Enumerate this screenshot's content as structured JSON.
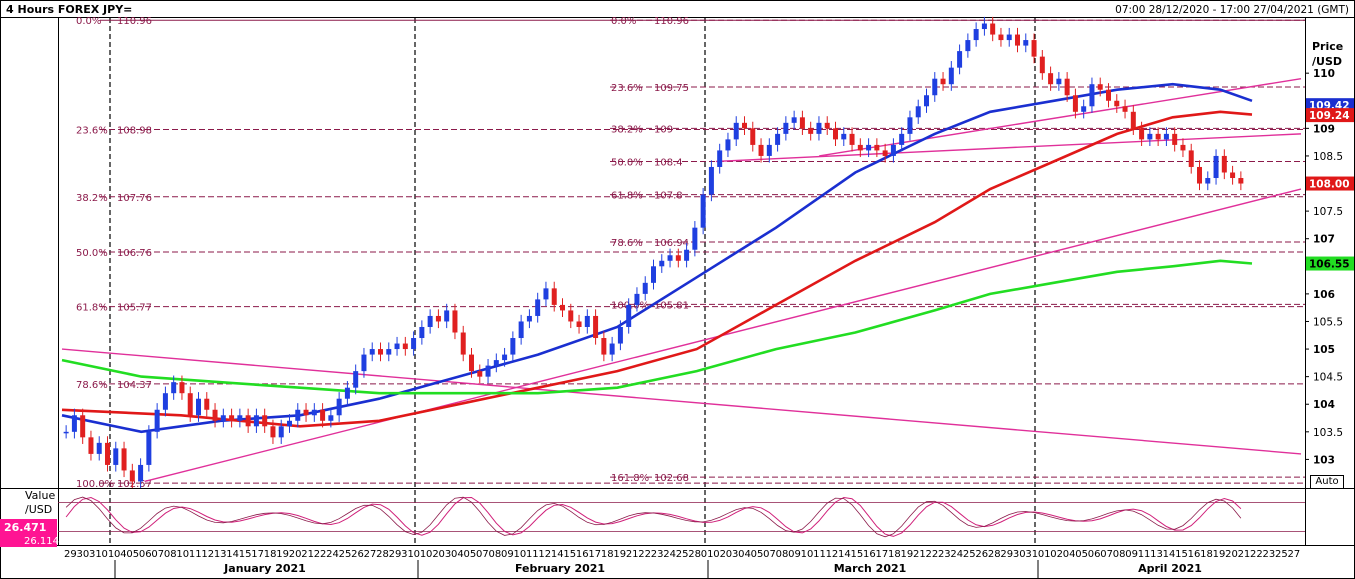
{
  "header": {
    "title": "4 Hours FOREX JPY=",
    "range": "07:00 28/12/2020 - 17:00 27/04/2021 (GMT)"
  },
  "price_axis": {
    "title_line1": "Price",
    "title_line2": "/USD"
  },
  "osc_axis": {
    "title_line1": "Value",
    "title_line2": "/USD",
    "value1": "26.471",
    "value2": "26.114"
  },
  "auto_label": "Auto",
  "colors": {
    "bg": "#ffffff",
    "candle_up": "#1f3fe0",
    "candle_down": "#e02020",
    "ma_blue": "#1a2fd0",
    "ma_red": "#e01818",
    "ma_green": "#22dd22",
    "trend": "#e0309a",
    "fib": "#8b1a4a",
    "osc": "#d0207a"
  },
  "chart_data": {
    "type": "candlestick",
    "title": "4 Hours FOREX JPY=",
    "price_axis_title": "Price /USD",
    "ylim": [
      102.5,
      111.0
    ],
    "y_ticks": [
      103,
      103.5,
      104,
      104.5,
      105,
      105.5,
      106,
      106.5,
      107,
      107.5,
      108,
      108.5,
      109,
      109.5,
      110
    ],
    "y_tick_labels": [
      "103",
      "103.5",
      "104",
      "104.5",
      "105",
      "105.5",
      "106",
      "106.5",
      "107",
      "107.5",
      "108",
      "108.5",
      "109",
      "",
      "110"
    ],
    "x_day_labels": [
      "29",
      "30",
      "31",
      "01",
      "04",
      "05",
      "06",
      "07",
      "08",
      "11",
      "12",
      "13",
      "14",
      "15",
      "18",
      "19",
      "20",
      "21",
      "22",
      "25",
      "26",
      "27",
      "28",
      "29",
      "01",
      "02",
      "03",
      "04",
      "05",
      "08",
      "09",
      "10",
      "11",
      "12",
      "15",
      "16",
      "17",
      "18",
      "19",
      "22",
      "23",
      "24",
      "25",
      "26",
      "01",
      "02",
      "03",
      "04",
      "05",
      "08",
      "09",
      "10",
      "11",
      "12",
      "15",
      "16",
      "17",
      "18",
      "19",
      "22",
      "23",
      "24",
      "25",
      "26",
      "29",
      "30",
      "31",
      "01",
      "02",
      "05",
      "06",
      "07",
      "08",
      "09",
      "12",
      "13",
      "14",
      "15",
      "16",
      "19",
      "20",
      "21",
      "22",
      "23",
      "26",
      "27"
    ],
    "x_day_labels_display": [
      "29",
      "30",
      "31",
      "01",
      "04",
      "05",
      "06",
      "07",
      "08",
      "10",
      "11",
      "12",
      "13",
      "14",
      "15",
      "17",
      "18",
      "19",
      "20",
      "21",
      "22",
      "24",
      "25",
      "26",
      "27",
      "28",
      "29",
      "31",
      "01",
      "02",
      "03",
      "04",
      "05",
      "07",
      "08",
      "09",
      "10",
      "11",
      "12",
      "14",
      "15",
      "16",
      "17",
      "18",
      "19",
      "21",
      "22",
      "23",
      "24",
      "25",
      "28",
      "01",
      "02",
      "03",
      "04",
      "05",
      "07",
      "08",
      "09",
      "10",
      "11",
      "12",
      "14",
      "15",
      "16",
      "17",
      "18",
      "19",
      "21",
      "22",
      "23",
      "24",
      "25",
      "26",
      "28",
      "29",
      "30",
      "31",
      "01",
      "02",
      "04",
      "05",
      "06",
      "07",
      "08",
      "09",
      "11",
      "13",
      "14",
      "15",
      "16",
      "18",
      "19",
      "20",
      "21",
      "22",
      "23",
      "25",
      "27"
    ],
    "month_labels": [
      "January 2021",
      "February 2021",
      "March 2021",
      "April 2021"
    ],
    "last_price": 108.0,
    "price_tags": [
      {
        "value": 109.42,
        "label": "109.42",
        "color": "#1a2fd0"
      },
      {
        "value": 109.24,
        "label": "109.24",
        "color": "#e01818"
      },
      {
        "value": 108.0,
        "label": "108.00",
        "color": "#e01818"
      },
      {
        "value": 106.55,
        "label": "106.55",
        "color": "#22dd22"
      }
    ],
    "fibonacci_left": {
      "levels": [
        {
          "pct": "0.0%",
          "price": "110.96",
          "value": 110.96
        },
        {
          "pct": "23.6%",
          "price": "108.98",
          "value": 108.98
        },
        {
          "pct": "38.2%",
          "price": "107.76",
          "value": 107.76
        },
        {
          "pct": "50.0%",
          "price": "106.76",
          "value": 106.76
        },
        {
          "pct": "61.8%",
          "price": "105.77",
          "value": 105.77
        },
        {
          "pct": "78.6%",
          "price": "104.37",
          "value": 104.37
        },
        {
          "pct": "100.0%",
          "price": "102.57",
          "value": 102.57
        }
      ]
    },
    "fibonacci_right": {
      "levels": [
        {
          "pct": "0.0%",
          "price": "110.96",
          "value": 110.96
        },
        {
          "pct": "23.6%",
          "price": "109.75",
          "value": 109.75
        },
        {
          "pct": "38.2%",
          "price": "109",
          "value": 109.0
        },
        {
          "pct": "50.0%",
          "price": "108.4",
          "value": 108.4
        },
        {
          "pct": "61.8%",
          "price": "107.8",
          "value": 107.8
        },
        {
          "pct": "78.6%",
          "price": "106.94",
          "value": 106.94
        },
        {
          "pct": "100.0%",
          "price": "105.81",
          "value": 105.81
        },
        {
          "pct": "161.8%",
          "price": "102.68",
          "value": 102.68
        }
      ]
    },
    "close_series": [
      103.5,
      103.8,
      103.4,
      103.1,
      103.3,
      102.9,
      103.2,
      102.8,
      102.6,
      102.9,
      103.5,
      103.9,
      104.2,
      104.4,
      104.2,
      103.8,
      104.1,
      103.9,
      103.7,
      103.8,
      103.7,
      103.8,
      103.6,
      103.8,
      103.6,
      103.4,
      103.6,
      103.7,
      103.9,
      103.8,
      103.9,
      103.7,
      103.8,
      104.1,
      104.3,
      104.6,
      104.9,
      105.0,
      104.9,
      105.0,
      105.1,
      105.0,
      105.2,
      105.4,
      105.6,
      105.5,
      105.7,
      105.3,
      104.9,
      104.6,
      104.5,
      104.7,
      104.8,
      104.9,
      105.2,
      105.5,
      105.6,
      105.9,
      106.1,
      105.8,
      105.7,
      105.5,
      105.4,
      105.6,
      105.2,
      104.9,
      105.1,
      105.4,
      105.8,
      106.0,
      106.2,
      106.5,
      106.6,
      106.7,
      106.6,
      106.8,
      107.2,
      107.8,
      108.3,
      108.6,
      108.8,
      109.1,
      109.0,
      108.7,
      108.5,
      108.7,
      108.9,
      109.1,
      109.2,
      109.0,
      108.9,
      109.1,
      109.0,
      108.8,
      108.9,
      108.7,
      108.6,
      108.7,
      108.6,
      108.5,
      108.7,
      108.9,
      109.2,
      109.4,
      109.6,
      109.9,
      109.8,
      110.1,
      110.4,
      110.6,
      110.8,
      110.9,
      110.7,
      110.6,
      110.7,
      110.5,
      110.6,
      110.3,
      110.0,
      109.8,
      109.9,
      109.6,
      109.3,
      109.4,
      109.8,
      109.7,
      109.5,
      109.4,
      109.3,
      109.0,
      108.8,
      108.9,
      108.8,
      108.9,
      108.7,
      108.6,
      108.3,
      108.0,
      108.1,
      108.5,
      108.2,
      108.1,
      108.0
    ],
    "moving_averages": [
      {
        "name": "",
        "color": "#1a2fd0",
        "points": [
          [
            0,
            103.8
          ],
          [
            10,
            103.5
          ],
          [
            20,
            103.7
          ],
          [
            30,
            103.8
          ],
          [
            40,
            104.1
          ],
          [
            50,
            104.5
          ],
          [
            60,
            104.9
          ],
          [
            70,
            105.4
          ],
          [
            80,
            106.3
          ],
          [
            90,
            107.2
          ],
          [
            100,
            108.2
          ],
          [
            110,
            108.9
          ],
          [
            117,
            109.3
          ],
          [
            125,
            109.5
          ],
          [
            133,
            109.7
          ],
          [
            140,
            109.8
          ],
          [
            146,
            109.7
          ],
          [
            150,
            109.5
          ]
        ]
      },
      {
        "name": "",
        "color": "#e01818",
        "points": [
          [
            0,
            103.9
          ],
          [
            15,
            103.8
          ],
          [
            30,
            103.6
          ],
          [
            40,
            103.7
          ],
          [
            50,
            104.0
          ],
          [
            60,
            104.3
          ],
          [
            70,
            104.6
          ],
          [
            80,
            105.0
          ],
          [
            90,
            105.8
          ],
          [
            100,
            106.6
          ],
          [
            110,
            107.3
          ],
          [
            117,
            107.9
          ],
          [
            125,
            108.4
          ],
          [
            133,
            108.9
          ],
          [
            140,
            109.2
          ],
          [
            146,
            109.3
          ],
          [
            150,
            109.25
          ]
        ]
      },
      {
        "name": "",
        "color": "#22dd22",
        "points": [
          [
            0,
            104.8
          ],
          [
            10,
            104.5
          ],
          [
            20,
            104.4
          ],
          [
            30,
            104.3
          ],
          [
            40,
            104.2
          ],
          [
            50,
            104.2
          ],
          [
            60,
            104.2
          ],
          [
            70,
            104.3
          ],
          [
            80,
            104.6
          ],
          [
            90,
            105.0
          ],
          [
            100,
            105.3
          ],
          [
            110,
            105.7
          ],
          [
            117,
            106.0
          ],
          [
            125,
            106.2
          ],
          [
            133,
            106.4
          ],
          [
            140,
            106.5
          ],
          [
            146,
            106.6
          ],
          [
            150,
            106.55
          ]
        ]
      }
    ],
    "trend_lines": [
      {
        "from": [
          0,
          105.0
        ],
        "to": [
          180,
          103.1
        ]
      },
      {
        "from": [
          12,
          102.6
        ],
        "to": [
          180,
          107.9
        ]
      },
      {
        "from": [
          95,
          108.4
        ],
        "to": [
          180,
          108.9
        ]
      },
      {
        "from": [
          110,
          108.5
        ],
        "to": [
          180,
          109.9
        ]
      }
    ],
    "oscillator": {
      "name": "",
      "ylim": [
        0,
        100
      ],
      "upper_band": 80,
      "lower_band": 20,
      "current_values": [
        26.471,
        26.114
      ]
    },
    "grid": false,
    "legend": "none"
  }
}
